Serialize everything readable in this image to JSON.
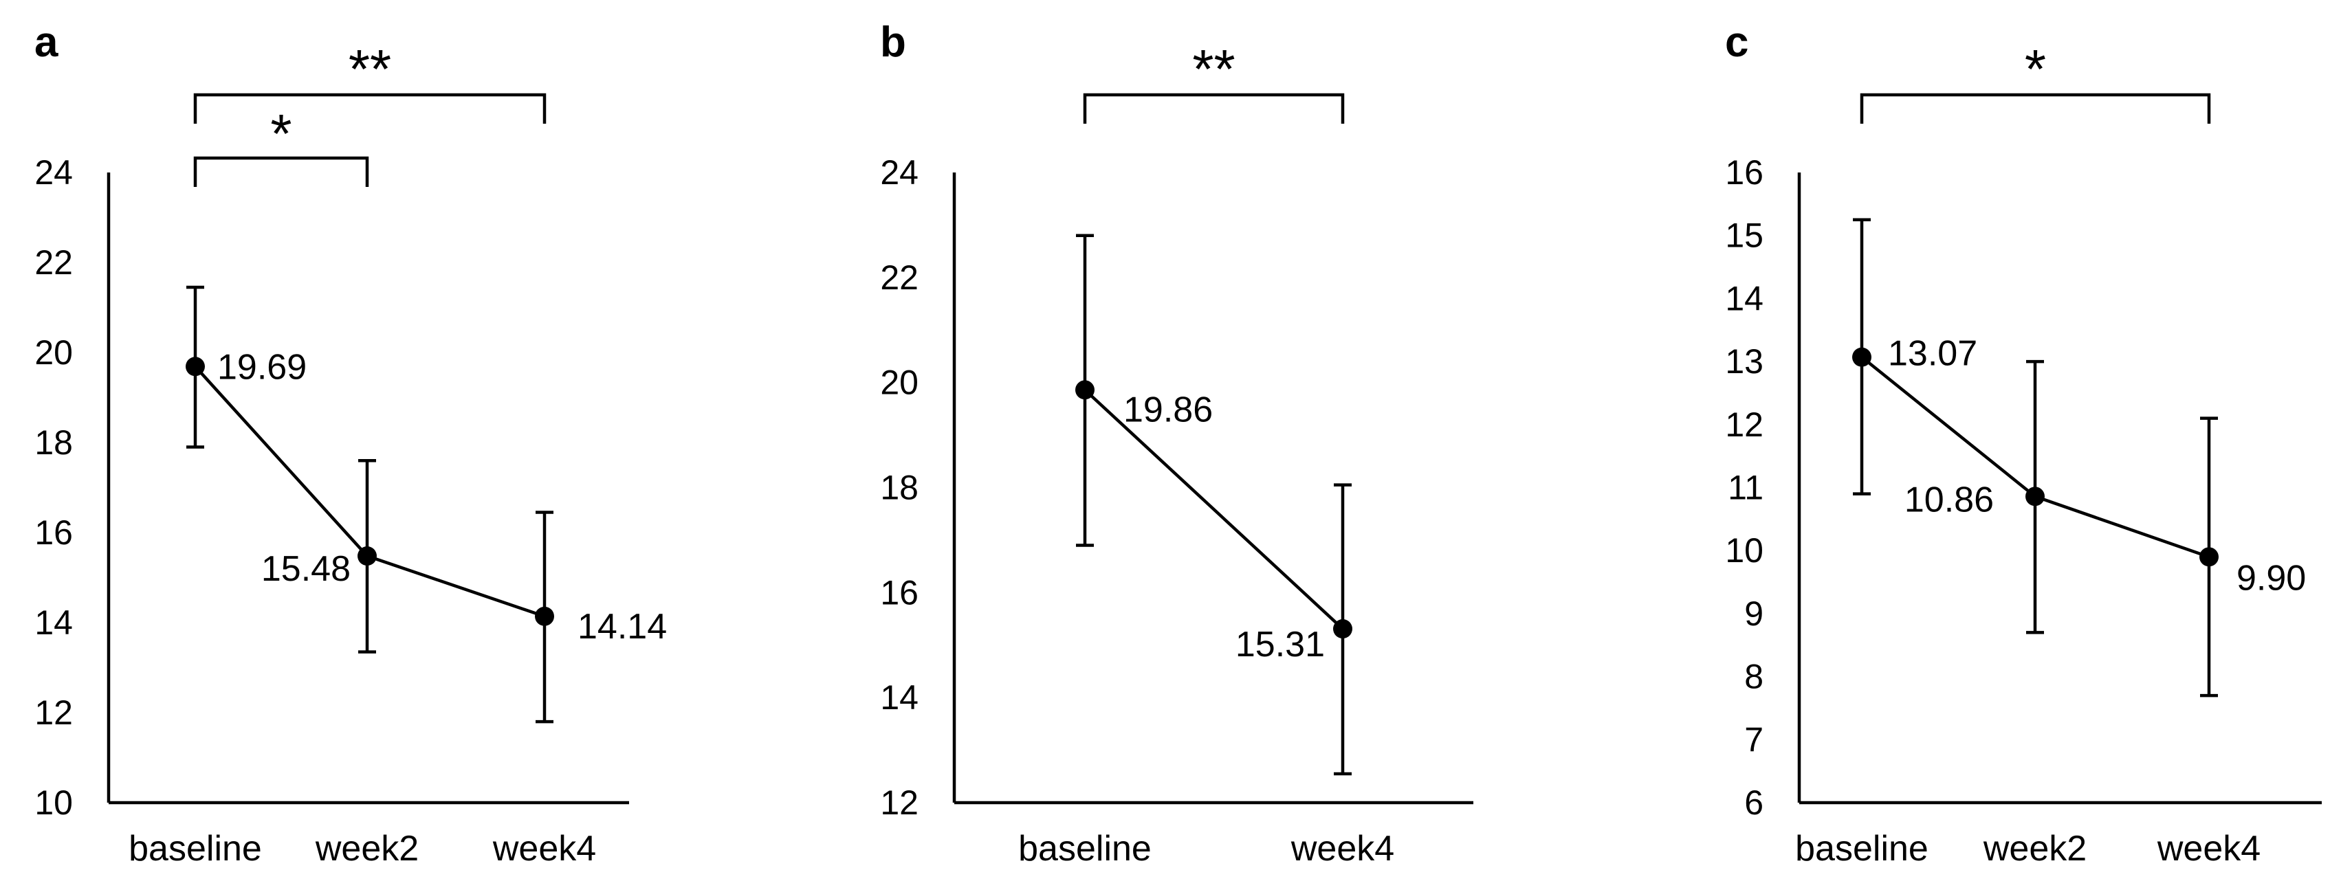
{
  "chart_data": [
    {
      "type": "line",
      "panel_label": "a",
      "categories": [
        "baseline",
        "week2",
        "week4"
      ],
      "values": [
        19.69,
        15.48,
        14.14
      ],
      "value_labels": [
        "19.69",
        "15.48",
        "14.14"
      ],
      "error_low": [
        17.9,
        13.35,
        11.8
      ],
      "error_high": [
        21.45,
        17.6,
        16.45
      ],
      "ylim": [
        10,
        24
      ],
      "yticks": [
        "10",
        "12",
        "14",
        "16",
        "18",
        "20",
        "22",
        "24"
      ],
      "grid": false,
      "significance": [
        {
          "from": "baseline",
          "to": "week4",
          "label": "**"
        },
        {
          "from": "baseline",
          "to": "week2",
          "label": "*"
        }
      ]
    },
    {
      "type": "line",
      "panel_label": "b",
      "categories": [
        "baseline",
        "week4"
      ],
      "values": [
        19.86,
        15.31
      ],
      "value_labels": [
        "19.86",
        "15.31"
      ],
      "error_low": [
        16.9,
        12.55
      ],
      "error_high": [
        22.8,
        18.05
      ],
      "ylim": [
        12,
        24
      ],
      "yticks": [
        "12",
        "14",
        "16",
        "18",
        "20",
        "22",
        "24"
      ],
      "grid": false,
      "significance": [
        {
          "from": "baseline",
          "to": "week4",
          "label": "**"
        }
      ]
    },
    {
      "type": "line",
      "panel_label": "c",
      "categories": [
        "baseline",
        "week2",
        "week4"
      ],
      "values": [
        13.07,
        10.86,
        9.9
      ],
      "value_labels": [
        "13.07",
        "10.86",
        "9.90"
      ],
      "error_low": [
        10.9,
        8.7,
        7.7
      ],
      "error_high": [
        15.25,
        13.0,
        12.1
      ],
      "ylim": [
        6,
        16
      ],
      "yticks": [
        "6",
        "7",
        "8",
        "9",
        "10",
        "11",
        "12",
        "13",
        "14",
        "15",
        "16"
      ],
      "grid": false,
      "significance": [
        {
          "from": "baseline",
          "to": "week4",
          "label": "*"
        }
      ]
    }
  ]
}
